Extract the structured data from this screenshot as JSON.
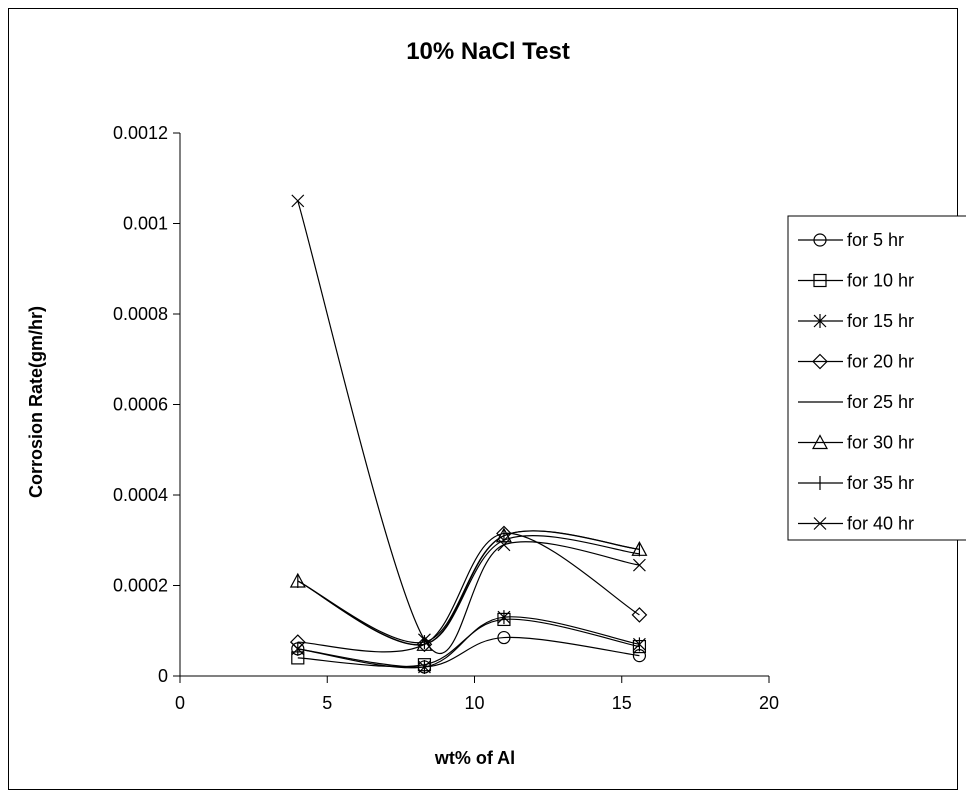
{
  "chart_data": {
    "type": "line",
    "title": "10% NaCl Test",
    "xlabel": "wt% of Al",
    "ylabel": "Corrosion Rate(gm/hr)",
    "xlim": [
      0,
      20
    ],
    "ylim": [
      0,
      0.0012
    ],
    "xticks": [
      0,
      5,
      10,
      15,
      20
    ],
    "yticks": [
      0,
      0.0002,
      0.0004,
      0.0006,
      0.0008,
      0.001,
      0.0012
    ],
    "xtick_labels": [
      "0",
      "5",
      "10",
      "15",
      "20"
    ],
    "ytick_labels": [
      "0",
      "0.0002",
      "0.0004",
      "0.0006",
      "0.0008",
      "0.001",
      "0.0012"
    ],
    "grid": false,
    "legend_position": "right",
    "line_color": "#000000",
    "x": [
      4,
      8.3,
      11,
      15.6
    ],
    "series": [
      {
        "name": "for 5 hr",
        "marker": "circle",
        "values": [
          6e-05,
          2e-05,
          8.5e-05,
          4.5e-05
        ]
      },
      {
        "name": "for 10 hr",
        "marker": "square",
        "values": [
          4e-05,
          2.5e-05,
          0.000125,
          6.5e-05
        ]
      },
      {
        "name": " for 15 hr",
        "marker": "asterisk",
        "values": [
          6e-05,
          2e-05,
          0.00013,
          7e-05
        ]
      },
      {
        "name": "for 20 hr",
        "marker": "diamond",
        "values": [
          7.5e-05,
          7e-05,
          0.000315,
          0.000135
        ]
      },
      {
        "name": "for 25 hr",
        "marker": "none",
        "values": [
          0.00021,
          7e-05,
          0.0003,
          0.00027
        ]
      },
      {
        "name": "for 30 hr",
        "marker": "triangle",
        "values": [
          0.00021,
          7e-05,
          0.00031,
          0.00028
        ]
      },
      {
        "name": "for 35 hr",
        "marker": "plus",
        "values": [
          0.00021,
          7.5e-05,
          0.00031,
          0.00028
        ]
      },
      {
        "name": "for 40 hr",
        "marker": "x",
        "values": [
          0.00105,
          8e-05,
          0.00029,
          0.000245
        ]
      }
    ]
  }
}
